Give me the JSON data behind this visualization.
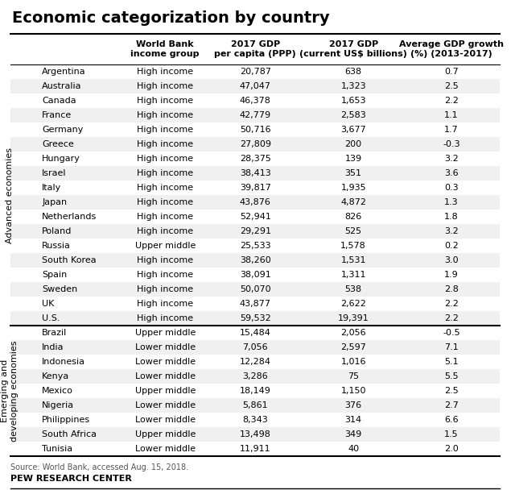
{
  "title": "Economic categorization by country",
  "col_headers": [
    "",
    "World Bank\nincome group",
    "2017 GDP\nper capita (PPP)",
    "2017 GDP\n(current US$ billions)",
    "Average GDP growth\n(%) (2013-2017)"
  ],
  "group1_label": "Advanced economies",
  "group2_label": "Emerging and\ndeveloping economies",
  "rows_advanced": [
    [
      "Argentina",
      "High income",
      "20,787",
      "638",
      "0.7"
    ],
    [
      "Australia",
      "High income",
      "47,047",
      "1,323",
      "2.5"
    ],
    [
      "Canada",
      "High income",
      "46,378",
      "1,653",
      "2.2"
    ],
    [
      "France",
      "High income",
      "42,779",
      "2,583",
      "1.1"
    ],
    [
      "Germany",
      "High income",
      "50,716",
      "3,677",
      "1.7"
    ],
    [
      "Greece",
      "High income",
      "27,809",
      "200",
      "-0.3"
    ],
    [
      "Hungary",
      "High income",
      "28,375",
      "139",
      "3.2"
    ],
    [
      "Israel",
      "High income",
      "38,413",
      "351",
      "3.6"
    ],
    [
      "Italy",
      "High income",
      "39,817",
      "1,935",
      "0.3"
    ],
    [
      "Japan",
      "High income",
      "43,876",
      "4,872",
      "1.3"
    ],
    [
      "Netherlands",
      "High income",
      "52,941",
      "826",
      "1.8"
    ],
    [
      "Poland",
      "High income",
      "29,291",
      "525",
      "3.2"
    ],
    [
      "Russia",
      "Upper middle",
      "25,533",
      "1,578",
      "0.2"
    ],
    [
      "South Korea",
      "High income",
      "38,260",
      "1,531",
      "3.0"
    ],
    [
      "Spain",
      "High income",
      "38,091",
      "1,311",
      "1.9"
    ],
    [
      "Sweden",
      "High income",
      "50,070",
      "538",
      "2.8"
    ],
    [
      "UK",
      "High income",
      "43,877",
      "2,622",
      "2.2"
    ],
    [
      "U.S.",
      "High income",
      "59,532",
      "19,391",
      "2.2"
    ]
  ],
  "rows_emerging": [
    [
      "Brazil",
      "Upper middle",
      "15,484",
      "2,056",
      "-0.5"
    ],
    [
      "India",
      "Lower middle",
      "7,056",
      "2,597",
      "7.1"
    ],
    [
      "Indonesia",
      "Lower middle",
      "12,284",
      "1,016",
      "5.1"
    ],
    [
      "Kenya",
      "Lower middle",
      "3,286",
      "75",
      "5.5"
    ],
    [
      "Mexico",
      "Upper middle",
      "18,149",
      "1,150",
      "2.5"
    ],
    [
      "Nigeria",
      "Lower middle",
      "5,861",
      "376",
      "2.7"
    ],
    [
      "Philippines",
      "Lower middle",
      "8,343",
      "314",
      "6.6"
    ],
    [
      "South Africa",
      "Upper middle",
      "13,498",
      "349",
      "1.5"
    ],
    [
      "Tunisia",
      "Lower middle",
      "11,911",
      "40",
      "2.0"
    ]
  ],
  "source_text": "Source: World Bank, accessed Aug. 15, 2018.",
  "footer_text": "PEW RESEARCH CENTER",
  "bg_color": "#ffffff",
  "row_even_color": "#f0f0f0",
  "title_fontsize": 14,
  "header_fontsize": 8,
  "data_fontsize": 8,
  "group_label_fontsize": 8,
  "source_fontsize": 7,
  "footer_fontsize": 8
}
